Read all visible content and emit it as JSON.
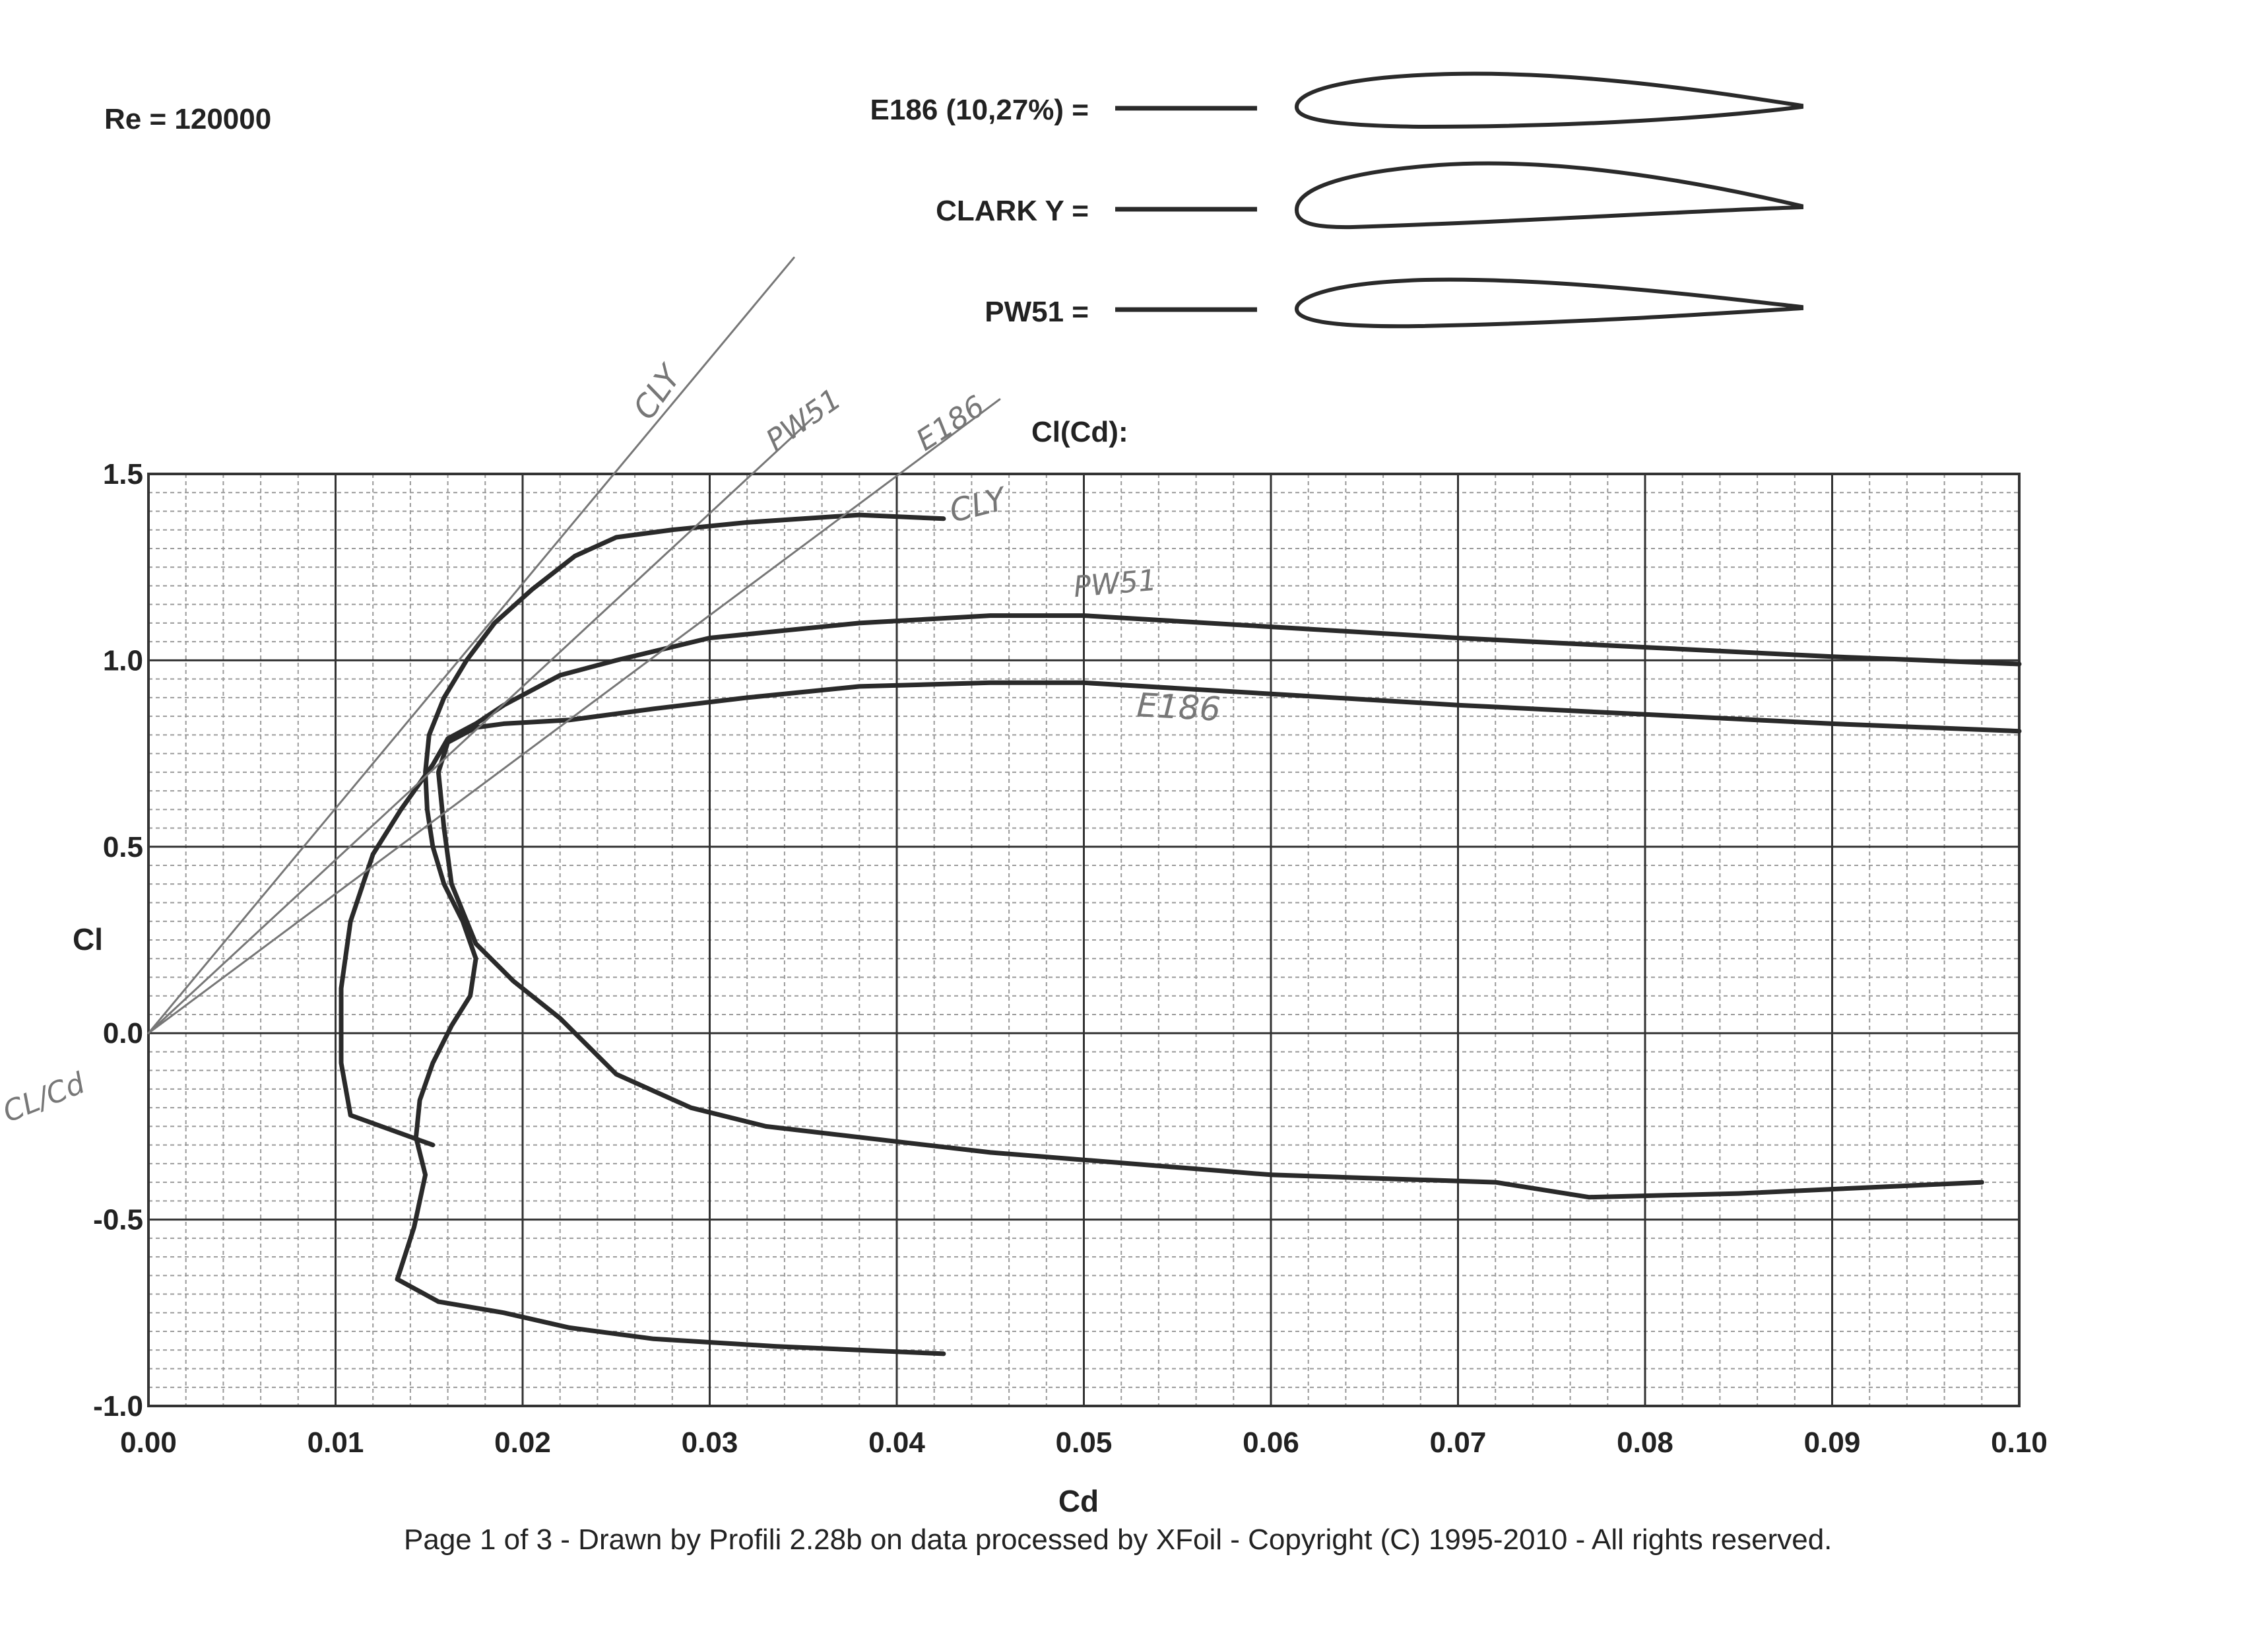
{
  "header": {
    "reynolds": "Re = 120000",
    "plot_title": "Cl(Cd):"
  },
  "legend": [
    {
      "label": "E186  (10,27%) =",
      "airfoil": "E186"
    },
    {
      "label": "CLARK Y =",
      "airfoil": "CLARK Y"
    },
    {
      "label": "PW51 =",
      "airfoil": "PW51"
    }
  ],
  "annotations": {
    "cly_tangent": "CLY",
    "pw51_tangent": "PW51",
    "e186_tangent": "E186",
    "cly_curve": "CLY",
    "pw51_curve": "PW51",
    "e186_curve": "E186",
    "ratio": "CL/Cd"
  },
  "footer": {
    "text": "Page 1 of 3   -   Drawn by Profili 2.28b on data processed by  XFoil - Copyright (C) 1995-2010 - All rights reserved."
  },
  "colors": {
    "curve": "#2a2a2a",
    "grid_major": "#333333",
    "grid_minor": "#9a9a9a",
    "pencil": "#777777"
  },
  "chart_data": {
    "type": "line",
    "title": "Cl(Cd):",
    "xlabel": "Cd",
    "ylabel": "Cl",
    "xlim": [
      0.0,
      0.1
    ],
    "ylim": [
      -1.0,
      1.5
    ],
    "grid": true,
    "xticks": [
      0.0,
      0.01,
      0.02,
      0.03,
      0.04,
      0.05,
      0.06,
      0.07,
      0.08,
      0.09,
      0.1
    ],
    "xtick_labels": [
      "0.00",
      "0.01",
      "0.02",
      "0.03",
      "0.04",
      "0.05",
      "0.06",
      "0.07",
      "0.08",
      "0.09",
      "0.10"
    ],
    "yticks": [
      -1.0,
      -0.5,
      0.0,
      0.5,
      1.0,
      1.5
    ],
    "ytick_labels": [
      "-1.0",
      "-0.5",
      "0.0",
      "0.5",
      "1.0",
      "1.5"
    ],
    "series": [
      {
        "name": "CLARK Y",
        "x": [
          0.0425,
          0.038,
          0.032,
          0.028,
          0.025,
          0.0228,
          0.0205,
          0.0185,
          0.017,
          0.0158,
          0.015,
          0.0148,
          0.0149,
          0.0152,
          0.0158,
          0.0168,
          0.0175,
          0.0172,
          0.0162,
          0.0152,
          0.0145,
          0.0143,
          0.0148,
          0.0142,
          0.0133,
          0.0155,
          0.019,
          0.0225,
          0.027,
          0.0335,
          0.0425
        ],
        "y": [
          1.38,
          1.39,
          1.37,
          1.35,
          1.33,
          1.28,
          1.19,
          1.1,
          1.0,
          0.9,
          0.8,
          0.7,
          0.6,
          0.5,
          0.4,
          0.3,
          0.2,
          0.1,
          0.02,
          -0.08,
          -0.18,
          -0.28,
          -0.38,
          -0.52,
          -0.66,
          -0.72,
          -0.75,
          -0.79,
          -0.82,
          -0.84,
          -0.86
        ]
      },
      {
        "name": "PW51",
        "x": [
          0.1,
          0.09,
          0.07,
          0.06,
          0.05,
          0.045,
          0.038,
          0.03,
          0.025,
          0.022,
          0.019,
          0.0175,
          0.016,
          0.0152,
          0.0135,
          0.012,
          0.0108,
          0.0103,
          0.0103,
          0.0108,
          0.0152
        ],
        "y": [
          0.99,
          1.01,
          1.06,
          1.09,
          1.12,
          1.12,
          1.1,
          1.06,
          1.0,
          0.96,
          0.88,
          0.83,
          0.79,
          0.72,
          0.6,
          0.48,
          0.3,
          0.12,
          -0.08,
          -0.22,
          -0.3
        ]
      },
      {
        "name": "E186",
        "x": [
          0.1,
          0.09,
          0.08,
          0.07,
          0.06,
          0.05,
          0.045,
          0.038,
          0.032,
          0.027,
          0.0225,
          0.019,
          0.0175,
          0.016,
          0.0155,
          0.0158,
          0.0162,
          0.0175,
          0.0195,
          0.022,
          0.025,
          0.029,
          0.033,
          0.045,
          0.06,
          0.072,
          0.077,
          0.085,
          0.098
        ],
        "y": [
          0.81,
          0.83,
          0.855,
          0.88,
          0.91,
          0.94,
          0.94,
          0.93,
          0.9,
          0.87,
          0.84,
          0.83,
          0.82,
          0.78,
          0.7,
          0.55,
          0.4,
          0.24,
          0.14,
          0.04,
          -0.11,
          -0.2,
          -0.25,
          -0.32,
          -0.38,
          -0.4,
          -0.44,
          -0.43,
          -0.4
        ]
      },
      {
        "name": "CLY tangent",
        "style": "pencil",
        "x": [
          0.0,
          0.0345
        ],
        "y": [
          0.0,
          2.08
        ]
      },
      {
        "name": "PW51 tangent",
        "style": "pencil",
        "x": [
          0.0,
          0.0355
        ],
        "y": [
          0.0,
          1.65
        ]
      },
      {
        "name": "E186 tangent",
        "style": "pencil",
        "x": [
          0.0,
          0.0455
        ],
        "y": [
          0.0,
          1.7
        ]
      }
    ]
  }
}
